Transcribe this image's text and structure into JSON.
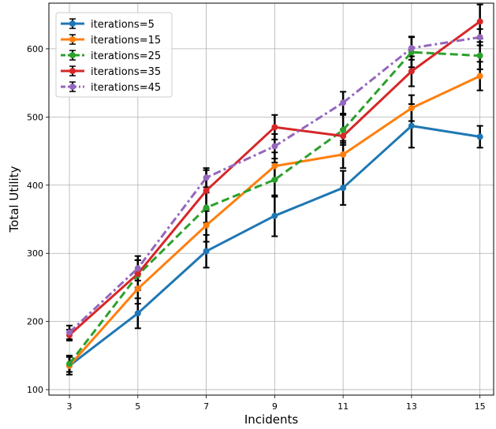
{
  "chart_data": {
    "type": "line",
    "xlabel": "Incidents",
    "ylabel": "Total Utility",
    "x": [
      3,
      5,
      7,
      9,
      11,
      13,
      15
    ],
    "xlim": [
      2.4,
      15.4
    ],
    "ylim": [
      92,
      667
    ],
    "xticks": [
      "3",
      "5",
      "7",
      "9",
      "11",
      "13",
      "15"
    ],
    "yticks": [
      "100",
      "200",
      "300",
      "400",
      "500",
      "600"
    ],
    "ytick_values": [
      100,
      200,
      300,
      400,
      500,
      600
    ],
    "grid": true,
    "legend_position": "upper-left",
    "series": [
      {
        "name": "iterations=5",
        "color": "#1f77b4",
        "linestyle": "solid",
        "values": [
          135,
          212,
          303,
          355,
          396,
          487,
          471
        ],
        "errors": [
          13,
          22,
          24,
          30,
          25,
          32,
          16
        ]
      },
      {
        "name": "iterations=15",
        "color": "#ff7f0e",
        "linestyle": "solid",
        "values": [
          135,
          248,
          341,
          428,
          445,
          513,
          560
        ],
        "errors": [
          13,
          22,
          24,
          20,
          20,
          19,
          21
        ]
      },
      {
        "name": "iterations=25",
        "color": "#2ca02c",
        "linestyle": "dashed",
        "values": [
          138,
          268,
          367,
          408,
          481,
          595,
          590
        ],
        "errors": [
          12,
          22,
          22,
          25,
          22,
          22,
          20
        ]
      },
      {
        "name": "iterations=35",
        "color": "#d62728",
        "linestyle": "solid",
        "values": [
          180,
          270,
          392,
          485,
          472,
          567,
          640
        ],
        "errors": [
          8,
          20,
          30,
          18,
          10,
          22,
          25
        ]
      },
      {
        "name": "iterations=45",
        "color": "#9467bd",
        "linestyle": "dashdot",
        "values": [
          184,
          278,
          411,
          457,
          521,
          601,
          617
        ],
        "errors": [
          10,
          18,
          14,
          18,
          16,
          17,
          12
        ]
      }
    ]
  }
}
